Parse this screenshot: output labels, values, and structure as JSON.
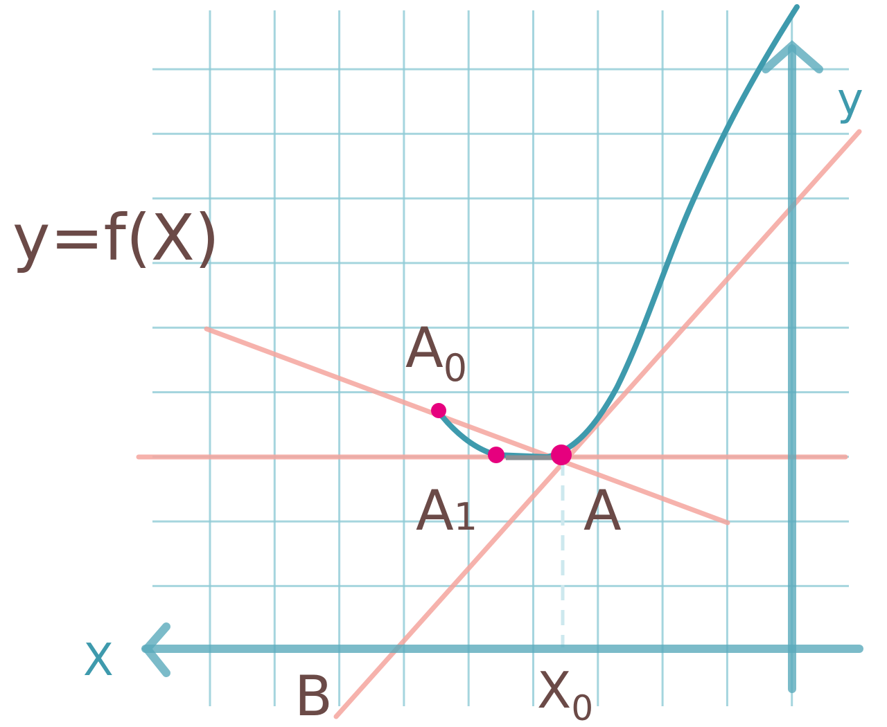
{
  "formula": "y=f(X)",
  "axes": {
    "x": "X",
    "y": "y"
  },
  "points": [
    {
      "letter": "A",
      "sub": "0"
    },
    {
      "letter": "A",
      "sub": "1"
    },
    {
      "letter": "A"
    },
    {
      "letter": "B"
    },
    {
      "letter": "X",
      "sub": "0"
    }
  ]
}
